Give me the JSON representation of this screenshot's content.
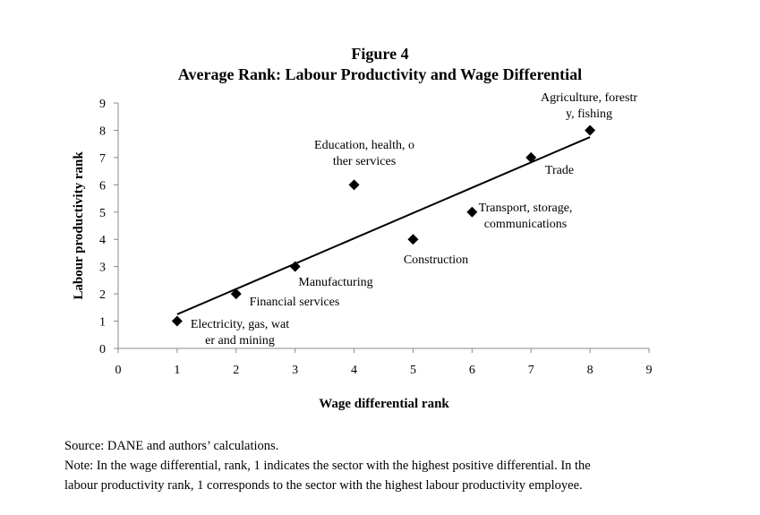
{
  "chart_data": {
    "type": "scatter",
    "figure_label": "Figure 4",
    "title": "Average Rank: Labour Productivity and Wage Differential",
    "xlabel": "Wage differential rank",
    "ylabel": "Labour productivity rank",
    "xlim": [
      0,
      9
    ],
    "ylim": [
      0,
      9
    ],
    "xticks": [
      "0",
      "1",
      "2",
      "3",
      "4",
      "5",
      "6",
      "7",
      "8",
      "9"
    ],
    "yticks": [
      "0",
      "1",
      "2",
      "3",
      "4",
      "5",
      "6",
      "7",
      "8",
      "9"
    ],
    "grid": false,
    "points": [
      {
        "x": 1,
        "y": 1,
        "label": [
          "Electricity, gas, wat",
          "er and mining"
        ]
      },
      {
        "x": 2,
        "y": 2,
        "label": [
          "Financial services"
        ]
      },
      {
        "x": 3,
        "y": 3,
        "label": [
          "Manufacturing"
        ]
      },
      {
        "x": 4,
        "y": 6,
        "label": [
          "Education, health, o",
          "ther services"
        ]
      },
      {
        "x": 5,
        "y": 4,
        "label": [
          "Construction"
        ]
      },
      {
        "x": 6,
        "y": 5,
        "label": [
          "Transport, storage,",
          "communications"
        ]
      },
      {
        "x": 7,
        "y": 7,
        "label": [
          "Trade"
        ]
      },
      {
        "x": 8,
        "y": 8,
        "label": [
          "Agriculture, forestr",
          "y,  fishing"
        ]
      }
    ],
    "trendline": {
      "type": "linear",
      "slope": 0.9286,
      "intercept": 0.3214,
      "x_range": [
        1,
        8
      ]
    }
  },
  "notes": {
    "source": "Source: DANE and authors’ calculations.",
    "note_line1": "Note: In the wage differential, rank, 1 indicates the sector with the highest positive differential. In the",
    "note_line2": "labour productivity rank, 1 corresponds to the sector with the highest labour productivity employee."
  }
}
